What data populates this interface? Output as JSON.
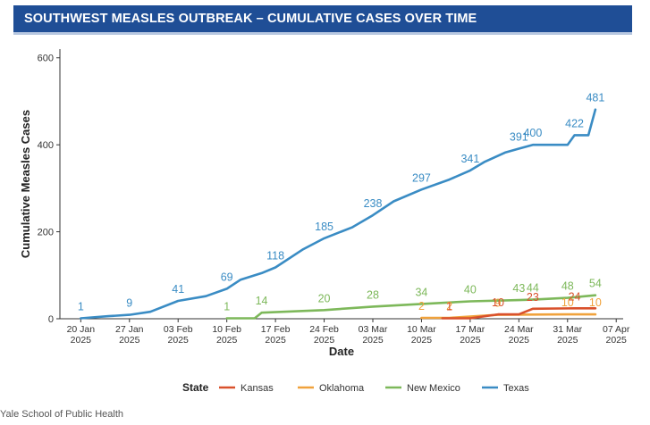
{
  "banner": {
    "title": "SOUTHWEST MEASLES OUTBREAK – CUMULATIVE CASES OVER TIME"
  },
  "footer": {
    "credit": "Yale School of Public Health"
  },
  "chart_data": {
    "type": "line",
    "title": "",
    "xlabel": "Date",
    "ylabel": "Cumulative Measles Cases",
    "x_range": [
      "2025-01-17",
      "2025-04-08"
    ],
    "ylim": [
      0,
      620
    ],
    "y_ticks": [
      0,
      200,
      400,
      600
    ],
    "x_ticks": [
      {
        "date": "2025-01-20",
        "label1": "20 Jan",
        "label2": "2025"
      },
      {
        "date": "2025-01-27",
        "label1": "27 Jan",
        "label2": "2025"
      },
      {
        "date": "2025-02-03",
        "label1": "03 Feb",
        "label2": "2025"
      },
      {
        "date": "2025-02-10",
        "label1": "10 Feb",
        "label2": "2025"
      },
      {
        "date": "2025-02-17",
        "label1": "17 Feb",
        "label2": "2025"
      },
      {
        "date": "2025-02-24",
        "label1": "24 Feb",
        "label2": "2025"
      },
      {
        "date": "2025-03-03",
        "label1": "03 Mar",
        "label2": "2025"
      },
      {
        "date": "2025-03-10",
        "label1": "10 Mar",
        "label2": "2025"
      },
      {
        "date": "2025-03-17",
        "label1": "17 Mar",
        "label2": "2025"
      },
      {
        "date": "2025-03-24",
        "label1": "24 Mar",
        "label2": "2025"
      },
      {
        "date": "2025-03-31",
        "label1": "31 Mar",
        "label2": "2025"
      },
      {
        "date": "2025-04-07",
        "label1": "07 Apr",
        "label2": "2025"
      }
    ],
    "grid": false,
    "legend": {
      "title": "State",
      "position": "bottom"
    },
    "series": [
      {
        "name": "Texas",
        "color": "#3a8cc4",
        "points": [
          [
            "2025-01-20",
            1
          ],
          [
            "2025-01-24",
            6
          ],
          [
            "2025-01-27",
            9
          ],
          [
            "2025-01-30",
            16
          ],
          [
            "2025-02-03",
            41
          ],
          [
            "2025-02-07",
            52
          ],
          [
            "2025-02-10",
            69
          ],
          [
            "2025-02-12",
            90
          ],
          [
            "2025-02-15",
            105
          ],
          [
            "2025-02-17",
            118
          ],
          [
            "2025-02-21",
            160
          ],
          [
            "2025-02-24",
            185
          ],
          [
            "2025-02-28",
            210
          ],
          [
            "2025-03-03",
            238
          ],
          [
            "2025-03-06",
            270
          ],
          [
            "2025-03-10",
            297
          ],
          [
            "2025-03-14",
            320
          ],
          [
            "2025-03-17",
            341
          ],
          [
            "2025-03-19",
            360
          ],
          [
            "2025-03-22",
            382
          ],
          [
            "2025-03-24",
            391
          ],
          [
            "2025-03-26",
            400
          ],
          [
            "2025-03-31",
            400
          ],
          [
            "2025-04-01",
            422
          ],
          [
            "2025-04-03",
            422
          ],
          [
            "2025-04-04",
            481
          ]
        ],
        "labels": [
          {
            "date": "2025-01-20",
            "value": 1,
            "text": "1"
          },
          {
            "date": "2025-01-27",
            "value": 9,
            "text": "9"
          },
          {
            "date": "2025-02-03",
            "value": 41,
            "text": "41"
          },
          {
            "date": "2025-02-10",
            "value": 69,
            "text": "69"
          },
          {
            "date": "2025-02-17",
            "value": 118,
            "text": "118"
          },
          {
            "date": "2025-02-24",
            "value": 185,
            "text": "185"
          },
          {
            "date": "2025-03-03",
            "value": 238,
            "text": "238"
          },
          {
            "date": "2025-03-10",
            "value": 297,
            "text": "297"
          },
          {
            "date": "2025-03-17",
            "value": 341,
            "text": "341"
          },
          {
            "date": "2025-03-24",
            "value": 391,
            "text": "391"
          },
          {
            "date": "2025-03-26",
            "value": 400,
            "text": "400"
          },
          {
            "date": "2025-04-01",
            "value": 422,
            "text": "422"
          },
          {
            "date": "2025-04-04",
            "value": 481,
            "text": "481"
          }
        ]
      },
      {
        "name": "New Mexico",
        "color": "#7db85a",
        "points": [
          [
            "2025-02-10",
            1
          ],
          [
            "2025-02-14",
            1
          ],
          [
            "2025-02-15",
            14
          ],
          [
            "2025-02-24",
            20
          ],
          [
            "2025-03-03",
            28
          ],
          [
            "2025-03-10",
            34
          ],
          [
            "2025-03-17",
            40
          ],
          [
            "2025-03-24",
            43
          ],
          [
            "2025-03-26",
            44
          ],
          [
            "2025-03-31",
            48
          ],
          [
            "2025-04-04",
            54
          ]
        ],
        "labels": [
          {
            "date": "2025-02-10",
            "value": 1,
            "text": "1"
          },
          {
            "date": "2025-02-15",
            "value": 14,
            "text": "14"
          },
          {
            "date": "2025-02-24",
            "value": 20,
            "text": "20"
          },
          {
            "date": "2025-03-03",
            "value": 28,
            "text": "28"
          },
          {
            "date": "2025-03-10",
            "value": 34,
            "text": "34"
          },
          {
            "date": "2025-03-17",
            "value": 40,
            "text": "40"
          },
          {
            "date": "2025-03-24",
            "value": 43,
            "text": "43"
          },
          {
            "date": "2025-03-26",
            "value": 44,
            "text": "44"
          },
          {
            "date": "2025-03-31",
            "value": 48,
            "text": "48"
          },
          {
            "date": "2025-04-04",
            "value": 54,
            "text": "54"
          }
        ]
      },
      {
        "name": "Oklahoma",
        "color": "#f0a23c",
        "points": [
          [
            "2025-03-10",
            2
          ],
          [
            "2025-03-14",
            2
          ],
          [
            "2025-03-21",
            9
          ],
          [
            "2025-03-31",
            10
          ],
          [
            "2025-04-04",
            10
          ]
        ],
        "labels": [
          {
            "date": "2025-03-10",
            "value": 2,
            "text": "2"
          },
          {
            "date": "2025-03-14",
            "value": 2,
            "text": "2"
          },
          {
            "date": "2025-03-21",
            "value": 9,
            "text": "9"
          },
          {
            "date": "2025-03-31",
            "value": 10,
            "text": "10"
          },
          {
            "date": "2025-04-04",
            "value": 10,
            "text": "10"
          }
        ]
      },
      {
        "name": "Kansas",
        "color": "#d9512c",
        "points": [
          [
            "2025-03-13",
            1
          ],
          [
            "2025-03-17",
            1
          ],
          [
            "2025-03-21",
            10
          ],
          [
            "2025-03-24",
            10
          ],
          [
            "2025-03-26",
            23
          ],
          [
            "2025-04-01",
            24
          ],
          [
            "2025-04-04",
            24
          ]
        ],
        "labels": [
          {
            "date": "2025-03-14",
            "value": 1,
            "text": "1"
          },
          {
            "date": "2025-03-21",
            "value": 10,
            "text": "10"
          },
          {
            "date": "2025-03-26",
            "value": 23,
            "text": "23"
          },
          {
            "date": "2025-04-01",
            "value": 24,
            "text": "24"
          }
        ]
      }
    ],
    "legend_order": [
      "Kansas",
      "Oklahoma",
      "New Mexico",
      "Texas"
    ]
  }
}
